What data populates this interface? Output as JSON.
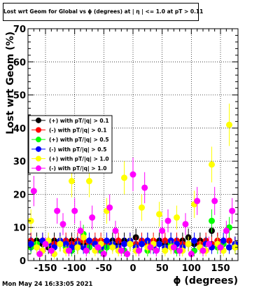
{
  "chart_data": {
    "type": "scatter",
    "title": "Lost wrt Geom for Global vs ϕ (degrees) at | η | <= 1.0 at pT > 0.11",
    "xlabel": "ϕ (degrees)",
    "ylabel": "Lost wrt Geom (%)",
    "xlim": [
      -180,
      180
    ],
    "ylim": [
      0,
      70
    ],
    "xticks": [
      -150,
      -100,
      -50,
      0,
      50,
      100,
      150
    ],
    "yticks": [
      0,
      10,
      20,
      30,
      40,
      50,
      60,
      70
    ],
    "grid": true,
    "legend_position": "middle-left",
    "series": [
      {
        "name": "(+) with pT/|q| > 0.1",
        "color": "#000000",
        "x": [
          -175,
          -165,
          -155,
          -145,
          -135,
          -125,
          -115,
          -105,
          -95,
          -85,
          -75,
          -65,
          -55,
          -45,
          -35,
          -25,
          -15,
          -5,
          5,
          15,
          25,
          35,
          45,
          55,
          65,
          75,
          85,
          95,
          105,
          115,
          125,
          135,
          145,
          155,
          165,
          175
        ],
        "y": [
          5,
          6,
          5,
          4,
          6,
          5,
          5,
          6,
          4,
          5,
          6,
          5,
          5,
          4,
          6,
          5,
          6,
          5,
          7,
          5,
          6,
          5,
          6,
          5,
          6,
          5,
          6,
          7,
          5,
          6,
          5,
          9,
          6,
          5,
          4,
          5
        ]
      },
      {
        "name": "(-) with pT/|q| > 0.1",
        "color": "#ff0000",
        "x": [
          -175,
          -165,
          -155,
          -145,
          -135,
          -125,
          -115,
          -105,
          -95,
          -85,
          -75,
          -65,
          -55,
          -45,
          -35,
          -25,
          -15,
          -5,
          5,
          15,
          25,
          35,
          45,
          55,
          65,
          75,
          85,
          95,
          105,
          115,
          125,
          135,
          145,
          155,
          165,
          175
        ],
        "y": [
          6,
          5,
          6,
          5,
          5,
          6,
          6,
          5,
          6,
          6,
          5,
          6,
          6,
          5,
          5,
          6,
          5,
          6,
          5,
          6,
          5,
          6,
          5,
          6,
          5,
          6,
          5,
          5,
          6,
          5,
          6,
          5,
          6,
          5,
          6,
          5
        ]
      },
      {
        "name": "(+) with pT/|q| > 0.5",
        "color": "#00ff00",
        "x": [
          -175,
          -165,
          -155,
          -145,
          -135,
          -125,
          -115,
          -105,
          -95,
          -85,
          -75,
          -65,
          -55,
          -45,
          -35,
          -25,
          -15,
          -5,
          5,
          15,
          25,
          35,
          45,
          55,
          65,
          75,
          85,
          95,
          105,
          115,
          125,
          135,
          145,
          155,
          165,
          175
        ],
        "y": [
          4,
          5,
          3,
          5,
          4,
          5,
          4,
          3,
          5,
          8,
          4,
          5,
          3,
          4,
          5,
          4,
          3,
          5,
          4,
          5,
          3,
          4,
          5,
          4,
          5,
          3,
          4,
          5,
          3,
          4,
          5,
          12,
          4,
          5,
          10,
          4
        ]
      },
      {
        "name": "(-) with pT/|q| > 0.5",
        "color": "#0000ff",
        "x": [
          -175,
          -165,
          -155,
          -145,
          -135,
          -125,
          -115,
          -105,
          -95,
          -85,
          -75,
          -65,
          -55,
          -45,
          -35,
          -25,
          -15,
          -5,
          5,
          15,
          25,
          35,
          45,
          55,
          65,
          75,
          85,
          95,
          105,
          115,
          125,
          135,
          145,
          155,
          165,
          175
        ],
        "y": [
          5,
          4,
          6,
          5,
          4,
          6,
          5,
          4,
          5,
          4,
          6,
          5,
          4,
          6,
          5,
          4,
          5,
          6,
          4,
          5,
          6,
          4,
          5,
          4,
          6,
          5,
          4,
          5,
          6,
          4,
          5,
          4,
          5,
          6,
          4,
          5
        ]
      },
      {
        "name": "(+) with pT/|q| > 1.0",
        "color": "#ffff00",
        "x": [
          -175,
          -165,
          -155,
          -145,
          -135,
          -125,
          -115,
          -105,
          -95,
          -85,
          -75,
          -65,
          -55,
          -45,
          -35,
          -25,
          -15,
          -5,
          5,
          15,
          25,
          35,
          45,
          55,
          65,
          75,
          85,
          95,
          105,
          115,
          125,
          135,
          145,
          155,
          165,
          175
        ],
        "y": [
          12,
          4,
          3,
          6,
          2,
          5,
          3,
          24,
          4,
          7,
          24,
          3,
          5,
          15,
          4,
          3,
          25,
          5,
          3,
          16,
          4,
          5,
          14,
          3,
          4,
          13,
          3,
          5,
          17,
          4,
          3,
          29,
          5,
          3,
          41,
          4
        ]
      },
      {
        "name": "(-) with pT/|q| > 1.0",
        "color": "#ff00ff",
        "x": [
          -170,
          -160,
          -150,
          -140,
          -130,
          -120,
          -110,
          -100,
          -90,
          -80,
          -70,
          -60,
          -50,
          -40,
          -30,
          -20,
          -10,
          0,
          10,
          20,
          30,
          40,
          50,
          60,
          70,
          80,
          90,
          100,
          110,
          120,
          130,
          140,
          150,
          160,
          170
        ],
        "y": [
          21,
          2,
          5,
          3,
          15,
          11,
          3,
          15,
          9,
          3,
          13,
          4,
          2,
          16,
          9,
          3,
          2,
          26,
          3,
          22,
          4,
          3,
          9,
          12,
          4,
          3,
          11,
          2,
          18,
          3,
          5,
          18,
          4,
          9,
          15
        ]
      }
    ]
  },
  "footer": {
    "date": "Mon May 24 16:33:05 2021"
  }
}
